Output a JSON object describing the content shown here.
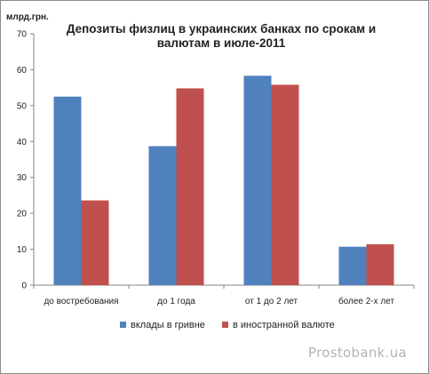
{
  "chart_data": {
    "type": "bar",
    "title_lines": [
      "Депозиты физлиц в украинских банках по срокам и",
      "валютам в июле-2011"
    ],
    "ylabel": "млрд.грн.",
    "xlabel": "",
    "categories": [
      "до востребования",
      "до 1 года",
      "от 1 до 2 лет",
      "более 2-х лет"
    ],
    "series": [
      {
        "name": "вклады в гривне",
        "color": "#4f81bd",
        "values": [
          52.5,
          38.7,
          58.3,
          10.7
        ]
      },
      {
        "name": "в иностранной валюте",
        "color": "#c0504d",
        "values": [
          23.6,
          54.8,
          55.8,
          11.4
        ]
      }
    ],
    "ylim": [
      0,
      70
    ],
    "yticks": [
      0,
      10,
      20,
      30,
      40,
      50,
      60,
      70
    ],
    "grid": false,
    "legend_position": "bottom"
  },
  "watermark": "Prostobank.ua"
}
